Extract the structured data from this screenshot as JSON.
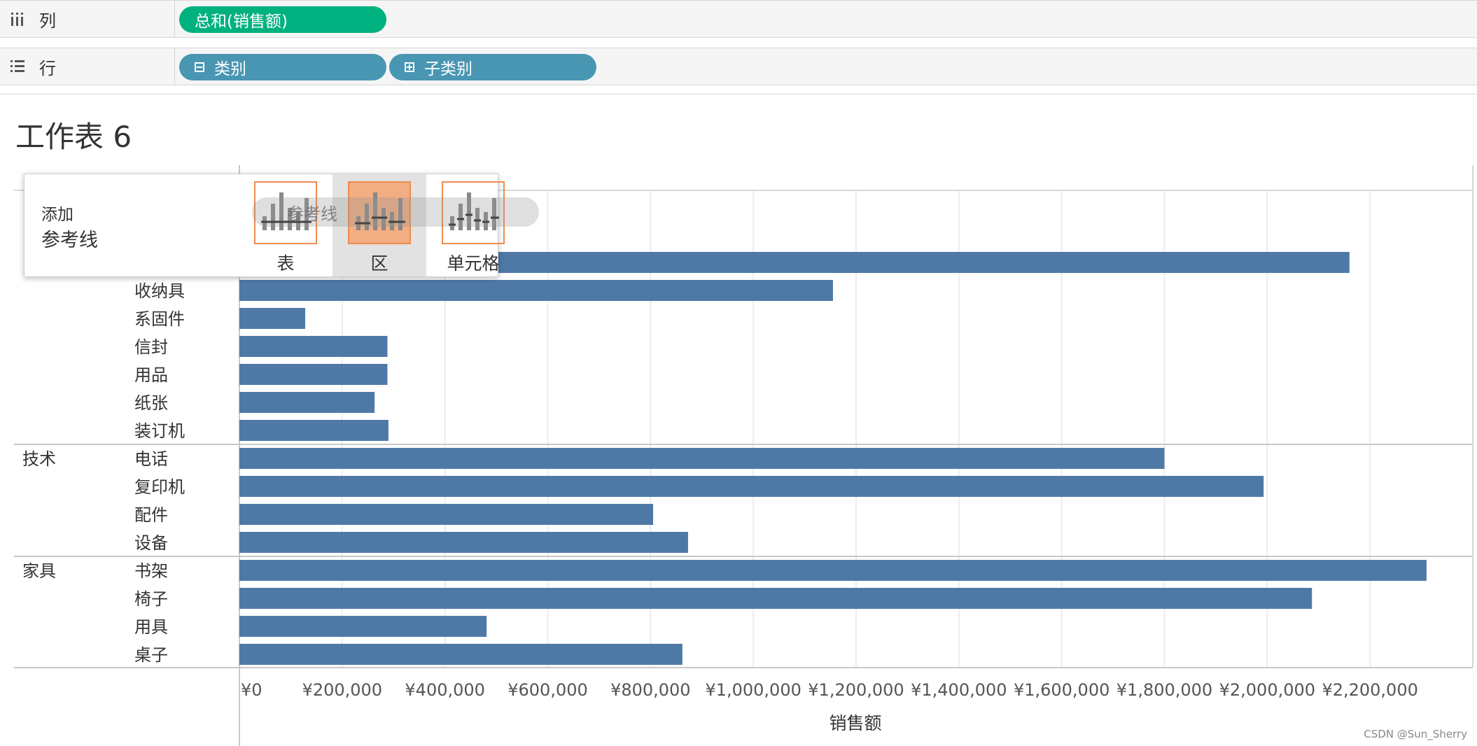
{
  "shelves": {
    "columns": {
      "label": "列",
      "pill": "总和(销售额)"
    },
    "rows": {
      "label": "行",
      "pills": [
        "类别",
        "子类别"
      ]
    }
  },
  "sheet": {
    "title": "工作表 6"
  },
  "popup": {
    "line1": "添加",
    "line2": "参考线",
    "options": [
      "表",
      "区",
      "单元格"
    ],
    "selected": "区",
    "drag_label": "参考线"
  },
  "colors": {
    "bar": "#4e79a7",
    "accent_orange": "#ef8b4c",
    "pill_green": "#00b180",
    "pill_blue": "#4996b2"
  },
  "chart_data": {
    "type": "bar",
    "orientation": "horizontal",
    "xlabel": "销售额",
    "xlim": [
      0,
      2400000
    ],
    "xticks": [
      0,
      200000,
      400000,
      600000,
      800000,
      1000000,
      1200000,
      1400000,
      1600000,
      1800000,
      2000000,
      2200000
    ],
    "xtick_labels": [
      "¥0",
      "¥200,000",
      "¥400,000",
      "¥600,000",
      "¥800,000",
      "¥1,000,000",
      "¥1,200,000",
      "¥1,400,000",
      "¥1,600,000",
      "¥1,800,000",
      "¥2,000,000",
      "¥2,200,000"
    ],
    "grid": "vertical",
    "groups": [
      {
        "category": "",
        "items": [
          {
            "sub": "",
            "value": 2160000
          },
          {
            "sub": "收纳具",
            "value": 1155000
          },
          {
            "sub": "系固件",
            "value": 128000
          },
          {
            "sub": "信封",
            "value": 288000
          },
          {
            "sub": "用品",
            "value": 288000
          },
          {
            "sub": "纸张",
            "value": 263000
          },
          {
            "sub": "装订机",
            "value": 290000
          }
        ]
      },
      {
        "category": "技术",
        "items": [
          {
            "sub": "电话",
            "value": 1800000
          },
          {
            "sub": "复印机",
            "value": 1993000
          },
          {
            "sub": "配件",
            "value": 805000
          },
          {
            "sub": "设备",
            "value": 873000
          }
        ]
      },
      {
        "category": "家具",
        "items": [
          {
            "sub": "书架",
            "value": 2310000
          },
          {
            "sub": "椅子",
            "value": 2087000
          },
          {
            "sub": "用具",
            "value": 481000
          },
          {
            "sub": "桌子",
            "value": 862000
          }
        ]
      }
    ]
  },
  "watermark": "CSDN @Sun_Sherry"
}
